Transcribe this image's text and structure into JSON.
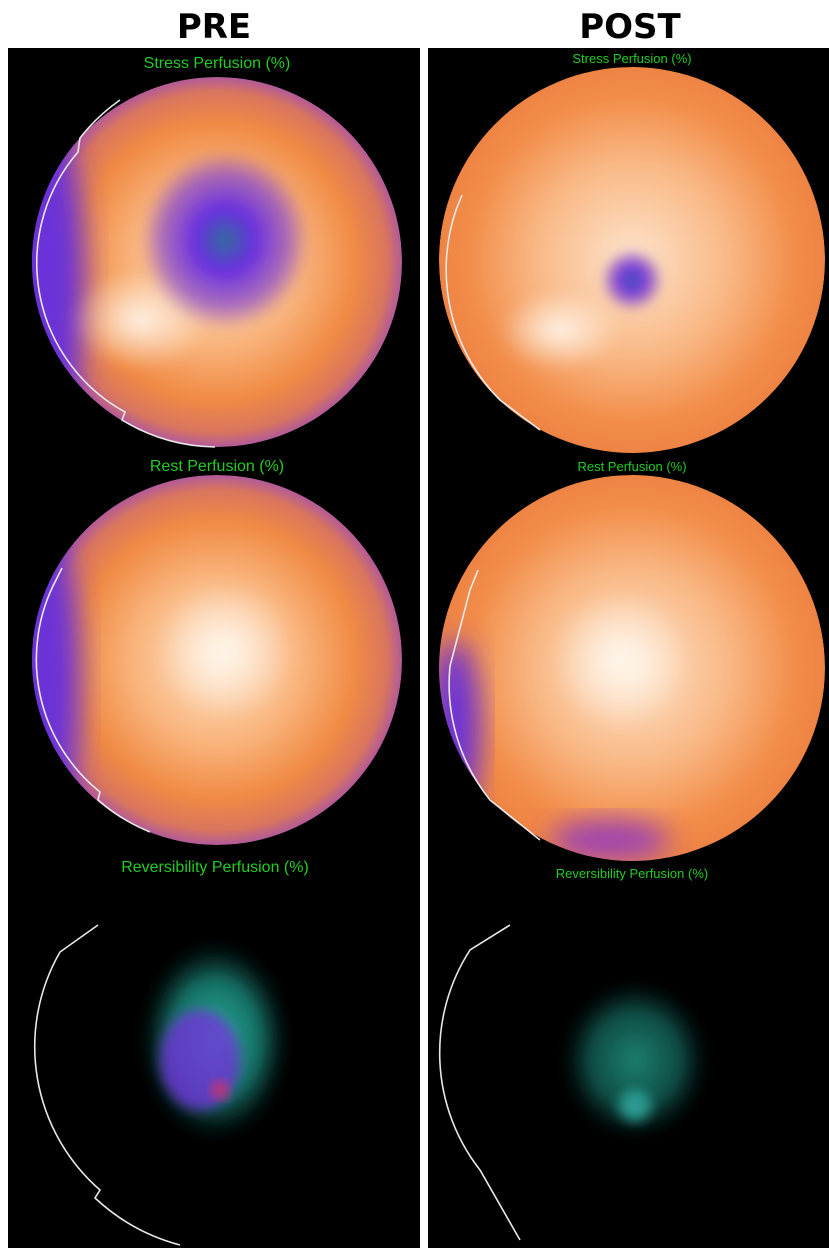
{
  "columns": [
    {
      "title": "PRE",
      "maps": [
        {
          "label": "Stress Perfusion (%)"
        },
        {
          "label": "Rest Perfusion (%)"
        },
        {
          "label": "Reversibility Perfusion (%)"
        }
      ]
    },
    {
      "title": "POST",
      "maps": [
        {
          "label": "Stress Perfusion (%)"
        },
        {
          "label": "Rest Perfusion (%)"
        },
        {
          "label": "Reversibility Perfusion (%)"
        }
      ]
    }
  ]
}
